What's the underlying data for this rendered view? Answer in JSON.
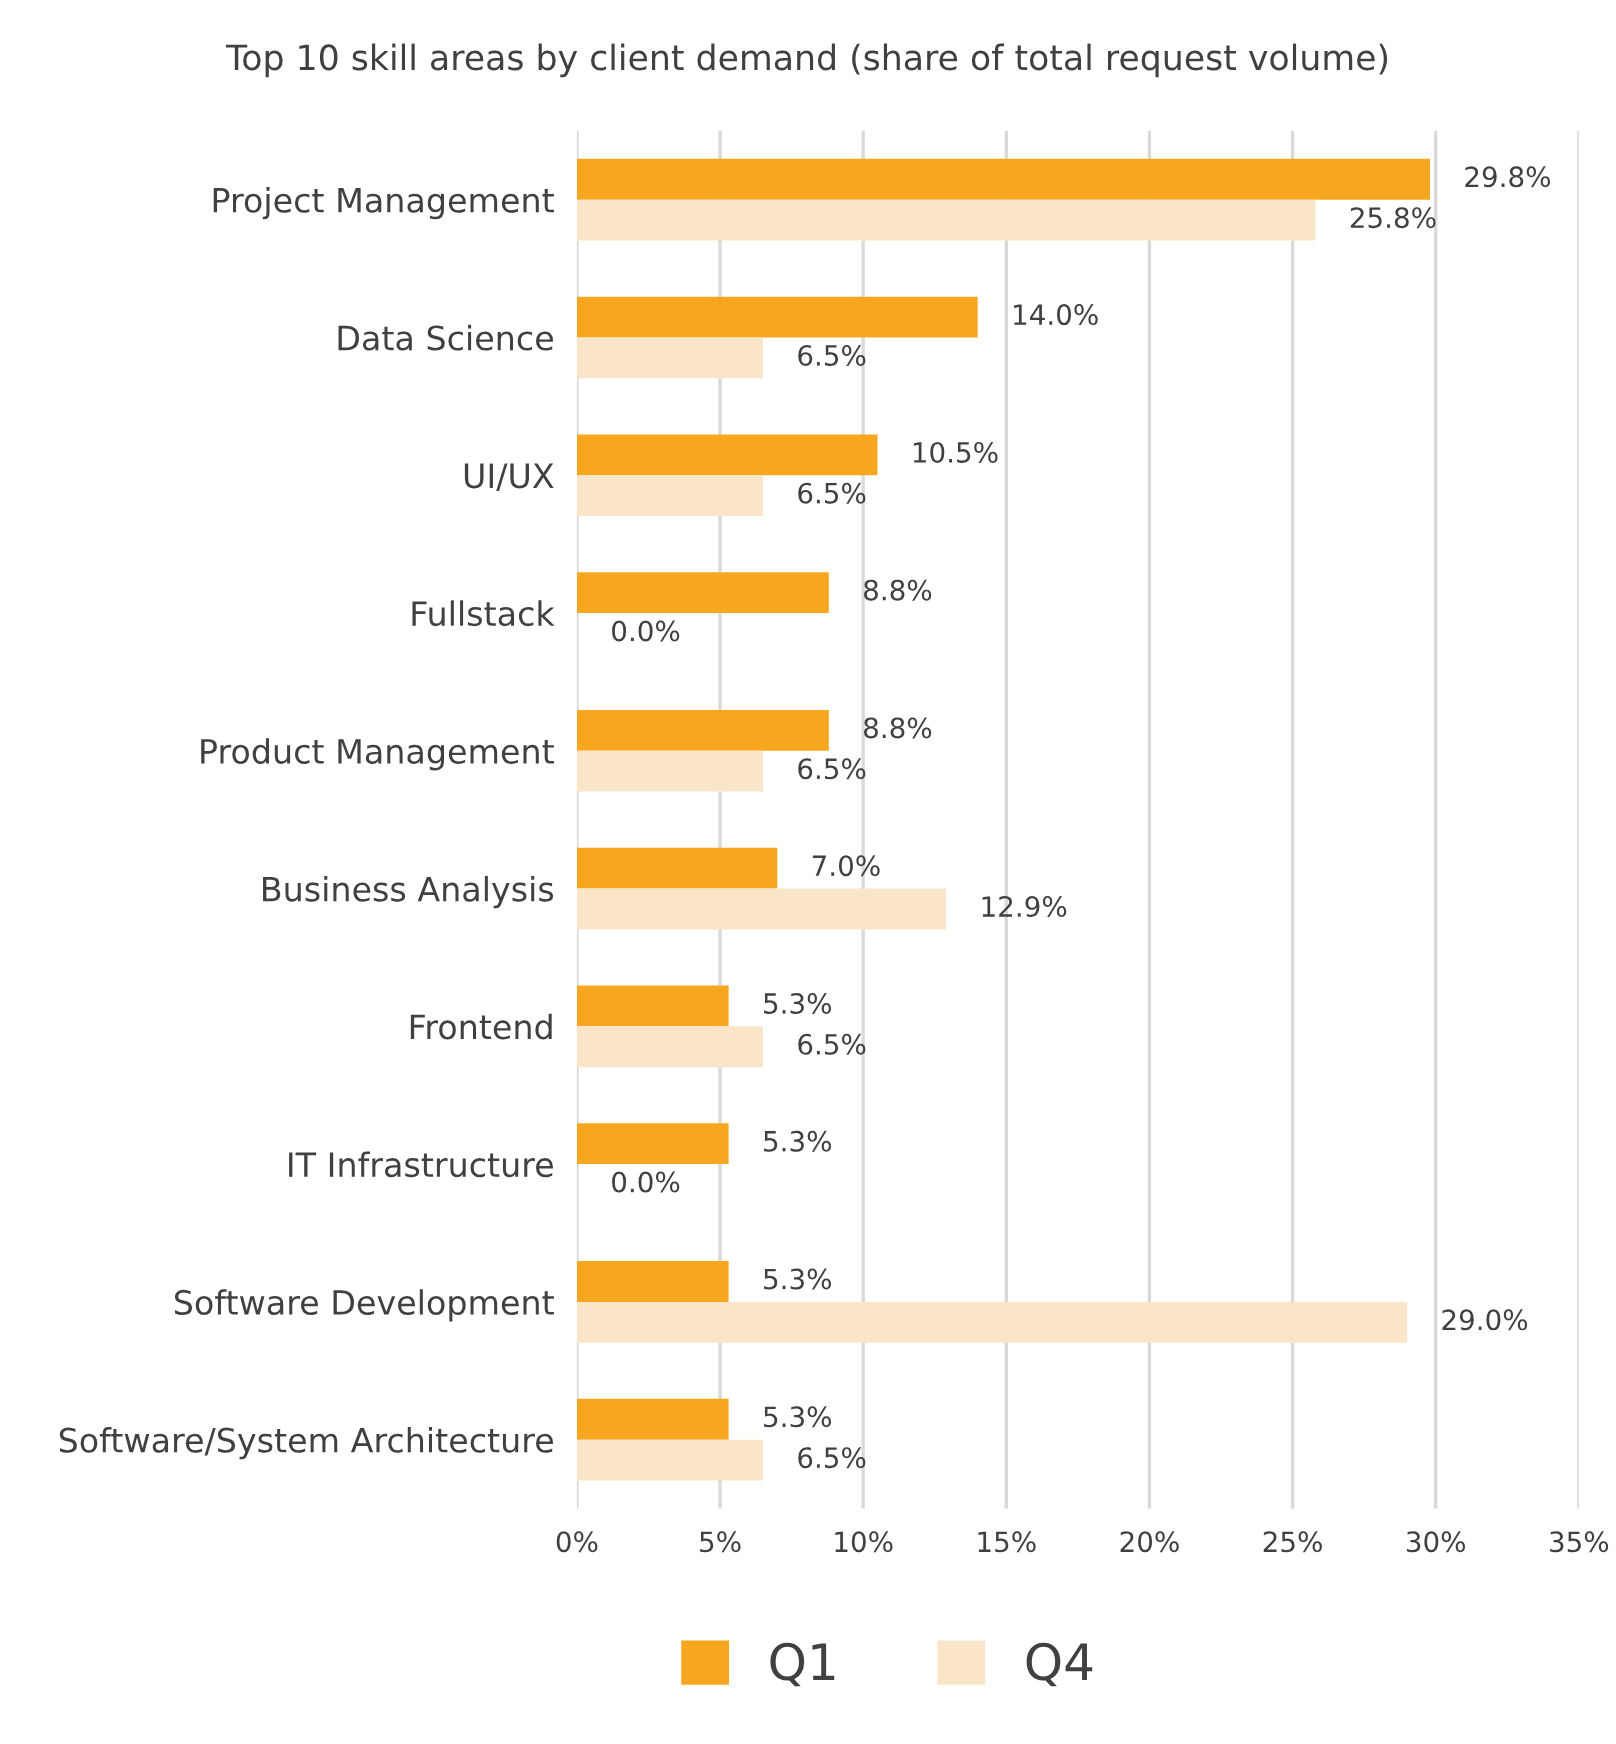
{
  "chart_data": {
    "type": "bar",
    "orientation": "horizontal",
    "title": "Top 10 skill areas by client demand (share of total request volume)",
    "categories": [
      "Project Management",
      "Data Science",
      "UI/UX",
      "Fullstack",
      "Product Management",
      "Business Analysis",
      "Frontend",
      "IT Infrastructure",
      "Software Development",
      "Software/System Architecture"
    ],
    "series": [
      {
        "name": "Q1",
        "color": "#f7a71f",
        "values": [
          29.8,
          14.0,
          10.5,
          8.8,
          8.8,
          7.0,
          5.3,
          5.3,
          5.3,
          5.3
        ],
        "value_labels": [
          "29.8%",
          "14.0%",
          "10.5%",
          "8.8%",
          "8.8%",
          "7.0%",
          "5.3%",
          "5.3%",
          "5.3%",
          "5.3%"
        ]
      },
      {
        "name": "Q4",
        "color": "#fbe5c8",
        "values": [
          25.8,
          6.5,
          6.5,
          0.0,
          6.5,
          12.9,
          6.5,
          0.0,
          29.0,
          6.5
        ],
        "value_labels": [
          "25.8%",
          "6.5%",
          "6.5%",
          "0.0%",
          "6.5%",
          "12.9%",
          "6.5%",
          "0.0%",
          "29.0%",
          "6.5%"
        ]
      }
    ],
    "xlim": [
      0,
      35
    ],
    "xticks": [
      {
        "value": 0,
        "label": "0%"
      },
      {
        "value": 5,
        "label": "5%"
      },
      {
        "value": 10,
        "label": "10%"
      },
      {
        "value": 15,
        "label": "15%"
      },
      {
        "value": 20,
        "label": "20%"
      },
      {
        "value": 25,
        "label": "25%"
      },
      {
        "value": 30,
        "label": "30%"
      },
      {
        "value": 35,
        "label": "35%"
      }
    ],
    "grid": "x",
    "legend": "bottom"
  }
}
